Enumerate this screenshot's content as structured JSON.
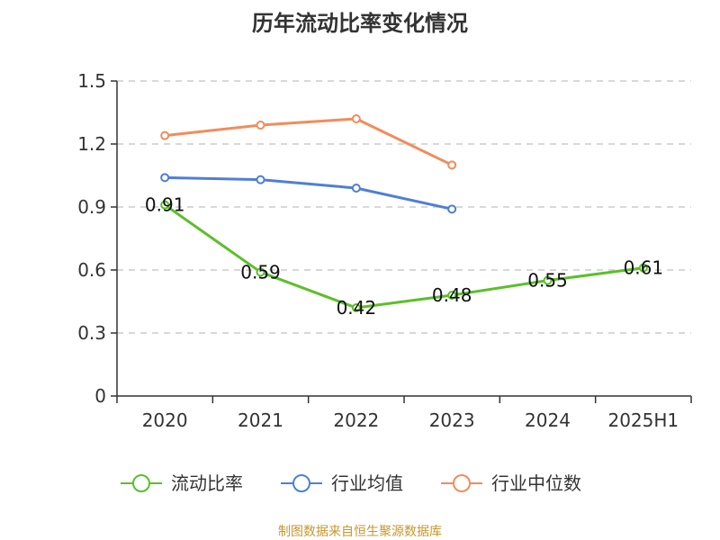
{
  "title": "历年流动比率变化情况",
  "source": "制图数据来自恒生聚源数据库",
  "chart_data": {
    "type": "line",
    "title": "历年流动比率变化情况",
    "categories": [
      "2020",
      "2021",
      "2022",
      "2023",
      "2024",
      "2025H1"
    ],
    "y_ticks": [
      "0",
      "0.3",
      "0.6",
      "0.9",
      "1.2",
      "1.5"
    ],
    "ylim": [
      0,
      1.5
    ],
    "grid": true,
    "legend_position": "bottom",
    "series": [
      {
        "name": "流动比率",
        "color": "#5cbf2a",
        "values": [
          0.91,
          0.59,
          0.42,
          0.48,
          0.55,
          0.61
        ],
        "labels": [
          "0.91",
          "0.59",
          "0.42",
          "0.48",
          "0.55",
          "0.61"
        ]
      },
      {
        "name": "行业均值",
        "color": "#4f7fd6",
        "values": [
          1.04,
          1.03,
          0.99,
          0.89,
          null,
          null
        ]
      },
      {
        "name": "行业中位数",
        "color": "#f28c5a",
        "values": [
          1.24,
          1.29,
          1.32,
          1.1,
          null,
          null
        ]
      }
    ]
  }
}
